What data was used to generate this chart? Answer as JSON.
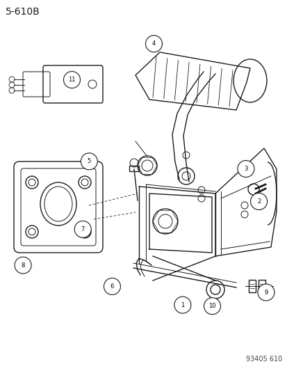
{
  "title": "5-610B",
  "footer": "93405 610",
  "bg_color": "#ffffff",
  "line_color": "#1a1a1a",
  "title_fontsize": 10,
  "footer_fontsize": 7,
  "fig_width": 4.14,
  "fig_height": 5.33,
  "dpi": 100,
  "callout_data": [
    [
      1,
      0.635,
      0.822
    ],
    [
      2,
      0.9,
      0.543
    ],
    [
      3,
      0.855,
      0.455
    ],
    [
      4,
      0.535,
      0.118
    ],
    [
      5,
      0.31,
      0.435
    ],
    [
      6,
      0.39,
      0.772
    ],
    [
      7,
      0.288,
      0.618
    ],
    [
      8,
      0.08,
      0.715
    ],
    [
      9,
      0.925,
      0.788
    ],
    [
      10,
      0.738,
      0.825
    ],
    [
      11,
      0.25,
      0.215
    ]
  ]
}
